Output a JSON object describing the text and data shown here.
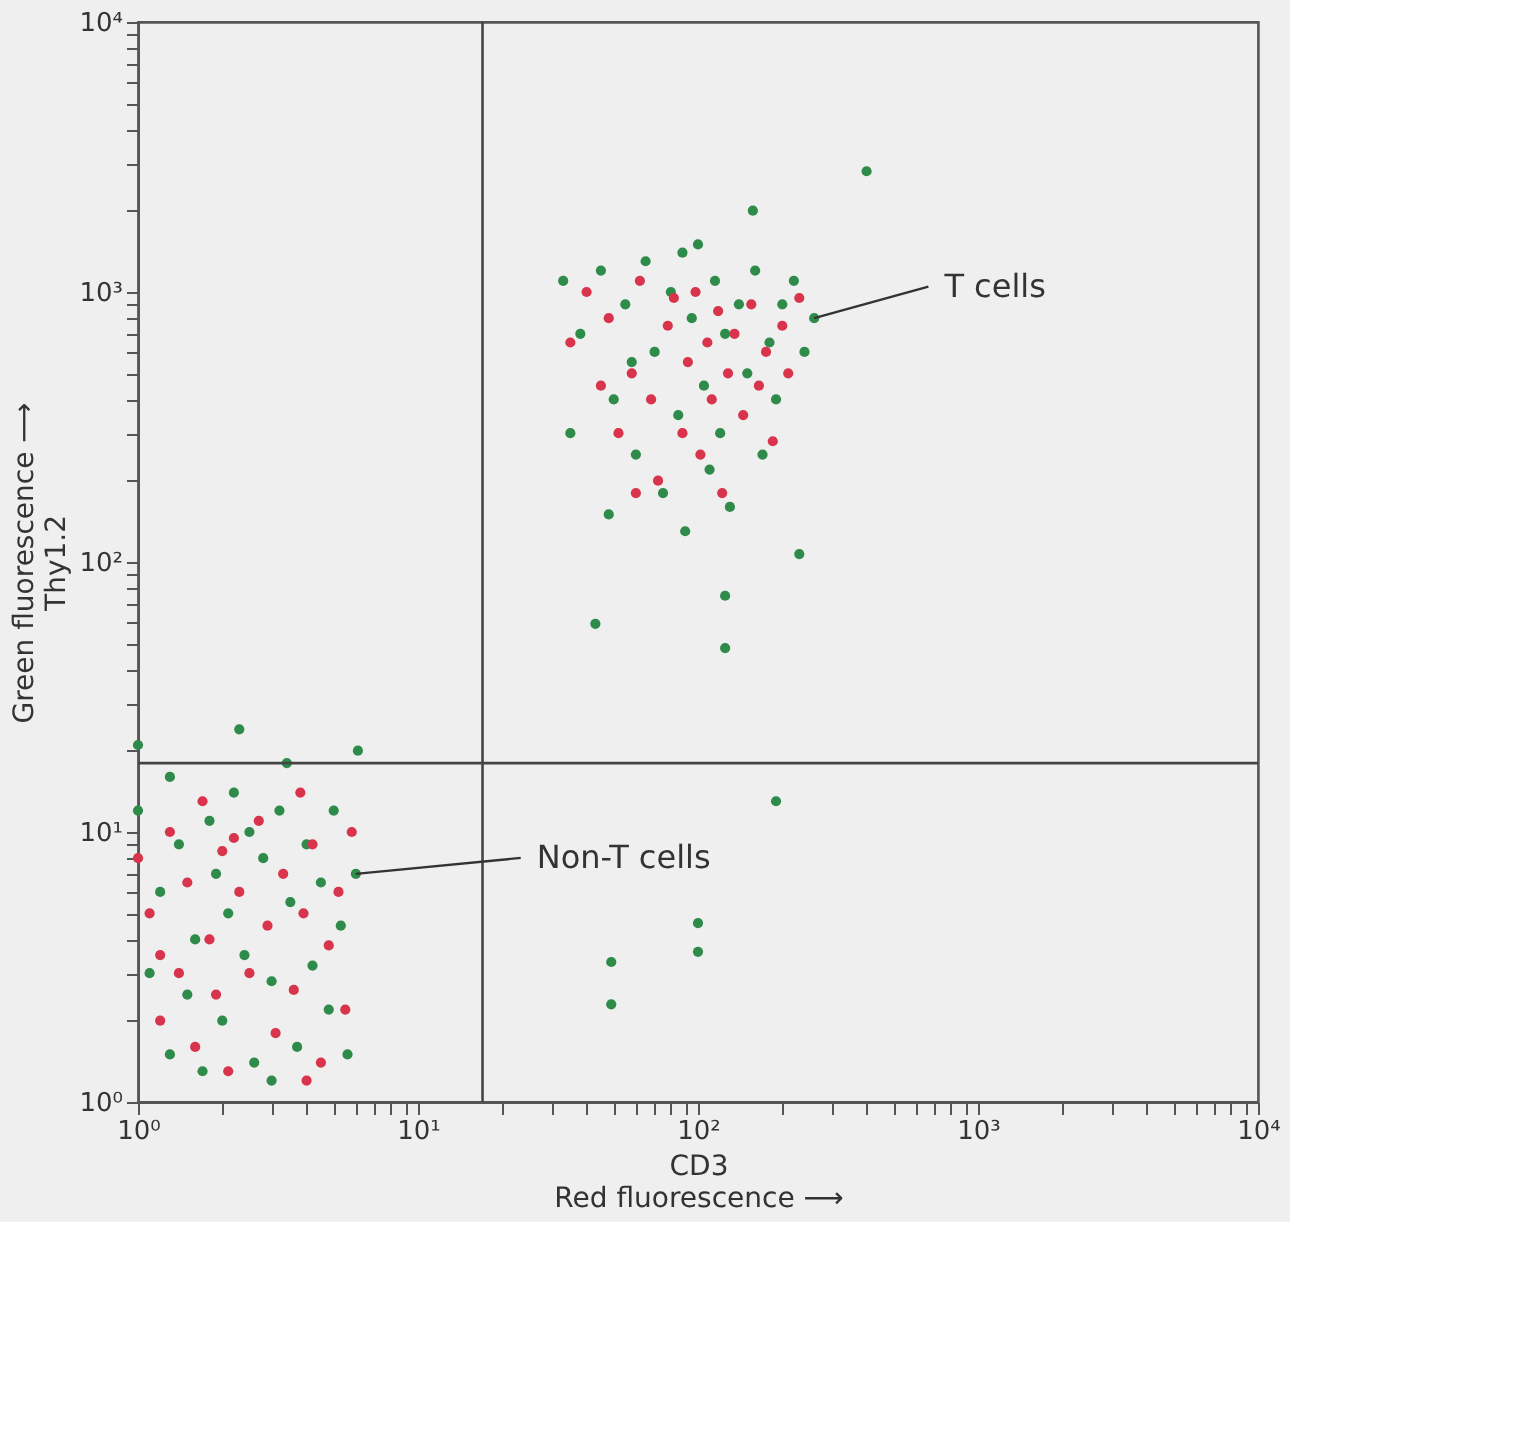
{
  "chart_data": {
    "type": "scatter",
    "xlabel": "CD3\nRed fluorescence ⟶",
    "ylabel": "Green fluorescence ⟶\nThy1.2",
    "log": "xy",
    "marker": "circle",
    "xlim": [
      1,
      10000
    ],
    "ylim": [
      1,
      10000
    ],
    "xticks": [
      {
        "value": 1,
        "label": "10⁰"
      },
      {
        "value": 2,
        "label": null
      },
      {
        "value": 3,
        "label": null
      },
      {
        "value": 4,
        "label": null
      },
      {
        "value": 5,
        "label": null
      },
      {
        "value": 6,
        "label": null
      },
      {
        "value": 7,
        "label": null
      },
      {
        "value": 8,
        "label": null
      },
      {
        "value": 9,
        "label": null
      },
      {
        "value": 10,
        "label": "10¹"
      },
      {
        "value": 20,
        "label": null
      },
      {
        "value": 30,
        "label": null
      },
      {
        "value": 40,
        "label": null
      },
      {
        "value": 50,
        "label": null
      },
      {
        "value": 60,
        "label": null
      },
      {
        "value": 70,
        "label": null
      },
      {
        "value": 80,
        "label": null
      },
      {
        "value": 90,
        "label": null
      },
      {
        "value": 100,
        "label": "10²"
      },
      {
        "value": 200,
        "label": null
      },
      {
        "value": 300,
        "label": null
      },
      {
        "value": 400,
        "label": null
      },
      {
        "value": 500,
        "label": null
      },
      {
        "value": 600,
        "label": null
      },
      {
        "value": 700,
        "label": null
      },
      {
        "value": 800,
        "label": null
      },
      {
        "value": 900,
        "label": null
      },
      {
        "value": 1000,
        "label": "10³"
      },
      {
        "value": 2000,
        "label": null
      },
      {
        "value": 3000,
        "label": null
      },
      {
        "value": 4000,
        "label": null
      },
      {
        "value": 5000,
        "label": null
      },
      {
        "value": 6000,
        "label": null
      },
      {
        "value": 7000,
        "label": null
      },
      {
        "value": 8000,
        "label": null
      },
      {
        "value": 9000,
        "label": null
      },
      {
        "value": 10000,
        "label": "10⁴"
      }
    ],
    "yticks": [
      {
        "value": 1,
        "label": "10⁰"
      },
      {
        "value": 2,
        "label": null
      },
      {
        "value": 3,
        "label": null
      },
      {
        "value": 4,
        "label": null
      },
      {
        "value": 5,
        "label": null
      },
      {
        "value": 6,
        "label": null
      },
      {
        "value": 7,
        "label": null
      },
      {
        "value": 8,
        "label": null
      },
      {
        "value": 9,
        "label": null
      },
      {
        "value": 10,
        "label": "10¹"
      },
      {
        "value": 20,
        "label": null
      },
      {
        "value": 30,
        "label": null
      },
      {
        "value": 40,
        "label": null
      },
      {
        "value": 50,
        "label": null
      },
      {
        "value": 60,
        "label": null
      },
      {
        "value": 70,
        "label": null
      },
      {
        "value": 80,
        "label": null
      },
      {
        "value": 90,
        "label": null
      },
      {
        "value": 100,
        "label": "10²"
      },
      {
        "value": 200,
        "label": null
      },
      {
        "value": 300,
        "label": null
      },
      {
        "value": 400,
        "label": null
      },
      {
        "value": 500,
        "label": null
      },
      {
        "value": 600,
        "label": null
      },
      {
        "value": 700,
        "label": null
      },
      {
        "value": 800,
        "label": null
      },
      {
        "value": 900,
        "label": null
      },
      {
        "value": 1000,
        "label": "10³"
      },
      {
        "value": 2000,
        "label": null
      },
      {
        "value": 3000,
        "label": null
      },
      {
        "value": 4000,
        "label": null
      },
      {
        "value": 5000,
        "label": null
      },
      {
        "value": 6000,
        "label": null
      },
      {
        "value": 7000,
        "label": null
      },
      {
        "value": 8000,
        "label": null
      },
      {
        "value": 9000,
        "label": null
      },
      {
        "value": 10000,
        "label": "10⁴"
      }
    ],
    "ref_lines": [
      {
        "axis": "x",
        "value": 17,
        "color": "#444444"
      },
      {
        "axis": "y",
        "value": 18,
        "color": "#444444"
      }
    ],
    "annotations": [
      {
        "text": "T cells",
        "x": 260,
        "y": 800
      },
      {
        "text": "Non-T cells",
        "x": 6,
        "y": 7
      }
    ],
    "series": [
      {
        "color": "#2e8b4a",
        "x": [
          33,
          38,
          45,
          50,
          55,
          60,
          65,
          70,
          75,
          80,
          85,
          90,
          95,
          100,
          105,
          110,
          115,
          120,
          125,
          130,
          140,
          150,
          160,
          170,
          180,
          190,
          200,
          220,
          240,
          260,
          43,
          125,
          125,
          230,
          157,
          400,
          35,
          48,
          58,
          88,
          1,
          1.1,
          1.2,
          1.3,
          1.4,
          1.5,
          1.6,
          1.7,
          1.8,
          1.9,
          2,
          2.1,
          2.2,
          2.3,
          2.4,
          2.6,
          2.8,
          3,
          3.2,
          3.4,
          3.5,
          3.7,
          4,
          4.2,
          4.5,
          4.8,
          5,
          5.3,
          5.6,
          6,
          6.1,
          1,
          3,
          2.5,
          1.3,
          190,
          49,
          49,
          100,
          100
        ],
        "values": [
          1100,
          700,
          1200,
          400,
          900,
          250,
          1300,
          600,
          180,
          1000,
          350,
          130,
          800,
          1500,
          450,
          220,
          1100,
          300,
          700,
          160,
          900,
          500,
          1200,
          250,
          650,
          400,
          900,
          1100,
          600,
          800,
          59,
          48,
          75,
          107,
          2000,
          2800,
          300,
          150,
          550,
          1400,
          12,
          3,
          6,
          1.5,
          9,
          2.5,
          4,
          1.3,
          11,
          7,
          2,
          5,
          14,
          24,
          3.5,
          1.4,
          8,
          2.8,
          12,
          18,
          5.5,
          1.6,
          9,
          3.2,
          6.5,
          2.2,
          12,
          4.5,
          1.5,
          7,
          20,
          21,
          1.2,
          10,
          16,
          13,
          3.3,
          2.3,
          4.6,
          3.6
        ]
      },
      {
        "color": "#d8344c",
        "x": [
          35,
          40,
          48,
          52,
          58,
          62,
          68,
          72,
          78,
          82,
          88,
          92,
          98,
          102,
          108,
          112,
          118,
          122,
          128,
          135,
          145,
          155,
          165,
          175,
          185,
          200,
          210,
          230,
          60,
          45,
          1,
          1.1,
          1.2,
          1.3,
          1.4,
          1.5,
          1.6,
          1.8,
          1.9,
          2,
          2.1,
          2.3,
          2.5,
          2.7,
          2.9,
          3.1,
          3.3,
          3.6,
          3.9,
          4.2,
          4.5,
          4.8,
          5.2,
          5.5,
          5.8,
          1.7,
          2.2,
          3.8,
          1.2,
          4.0
        ],
        "values": [
          650,
          1000,
          800,
          300,
          500,
          1100,
          400,
          200,
          750,
          950,
          300,
          550,
          1000,
          250,
          650,
          400,
          850,
          180,
          500,
          700,
          350,
          900,
          450,
          600,
          280,
          750,
          500,
          950,
          180,
          450,
          8,
          5,
          2,
          10,
          3,
          6.5,
          1.6,
          4,
          2.5,
          8.5,
          1.3,
          6,
          3,
          11,
          4.5,
          1.8,
          7,
          2.6,
          5,
          9,
          1.4,
          3.8,
          6,
          2.2,
          10,
          13,
          9.5,
          14,
          3.5,
          1.2
        ]
      }
    ]
  }
}
